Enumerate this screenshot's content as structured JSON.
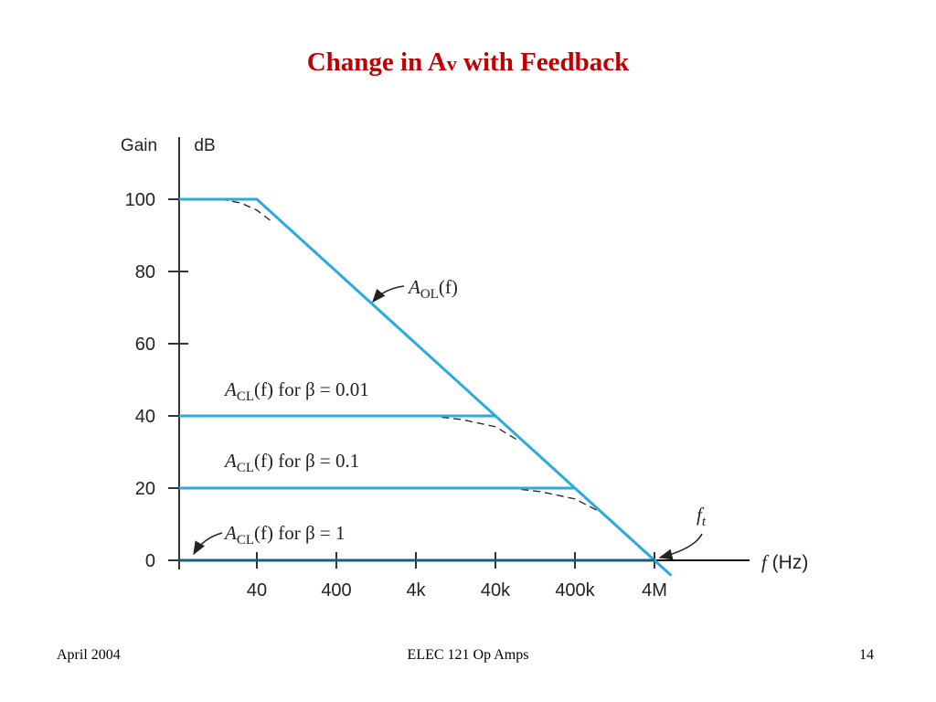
{
  "slide": {
    "title_prefix": "Change in A",
    "title_sub": "v",
    "title_suffix": " with Feedback"
  },
  "footer": {
    "left": "April  2004",
    "center": "ELEC 121  Op Amps",
    "right": "14"
  },
  "chart_data": {
    "type": "line",
    "y_axis_label_left": "Gain",
    "y_axis_label_unit": "dB",
    "x_axis_label": "f (Hz)",
    "x_scale": "log",
    "x_ticks": [
      {
        "value": 40,
        "label": "40"
      },
      {
        "value": 400,
        "label": "400"
      },
      {
        "value": 4000,
        "label": "4k"
      },
      {
        "value": 40000,
        "label": "40k"
      },
      {
        "value": 400000,
        "label": "400k"
      },
      {
        "value": 4000000,
        "label": "4M"
      }
    ],
    "y_ticks": [
      0,
      20,
      40,
      60,
      80,
      100
    ],
    "y_tick_labels": [
      "0",
      "20",
      "40",
      "60",
      "80",
      "100"
    ],
    "ylim": [
      0,
      100
    ],
    "xlim": [
      4,
      40000000
    ],
    "series": [
      {
        "name": "A_OL(f)",
        "label_main": "A",
        "label_sub": "OL",
        "label_tail": "(f)",
        "color": "#29abe2",
        "points": [
          [
            4,
            100
          ],
          [
            40,
            100
          ],
          [
            4000000,
            0
          ],
          [
            6500000,
            -4.2
          ]
        ]
      },
      {
        "name": "A_CL(f) for β = 0.01",
        "label_main": "A",
        "label_sub": "CL",
        "label_tail": "(f) for β = 0.01",
        "color": "#29abe2",
        "points": [
          [
            4,
            40
          ],
          [
            40000,
            40
          ]
        ]
      },
      {
        "name": "A_CL(f) for β = 0.1",
        "label_main": "A",
        "label_sub": "CL",
        "label_tail": "(f) for β = 0.1",
        "color": "#29abe2",
        "points": [
          [
            4,
            20
          ],
          [
            400000,
            20
          ]
        ]
      },
      {
        "name": "A_CL(f) for β = 1",
        "label_main": "A",
        "label_sub": "CL",
        "label_tail": "(f) for β = 1",
        "color": "#1a5f7a",
        "points": [
          [
            4,
            0
          ],
          [
            4000000,
            0
          ]
        ]
      }
    ],
    "dashed_curves": [
      {
        "points": [
          [
            14,
            100
          ],
          [
            25,
            99
          ],
          [
            40,
            97
          ],
          [
            60,
            94
          ]
        ]
      },
      {
        "points": [
          [
            6000,
            40
          ],
          [
            15000,
            39
          ],
          [
            40000,
            37
          ],
          [
            80000,
            33
          ]
        ]
      },
      {
        "points": [
          [
            60000,
            20
          ],
          [
            150000,
            19
          ],
          [
            400000,
            17
          ],
          [
            900000,
            13
          ]
        ]
      }
    ],
    "annotations": [
      {
        "text_main": "f",
        "text_sub": "t",
        "points_to": [
          4000000,
          0
        ]
      }
    ]
  }
}
